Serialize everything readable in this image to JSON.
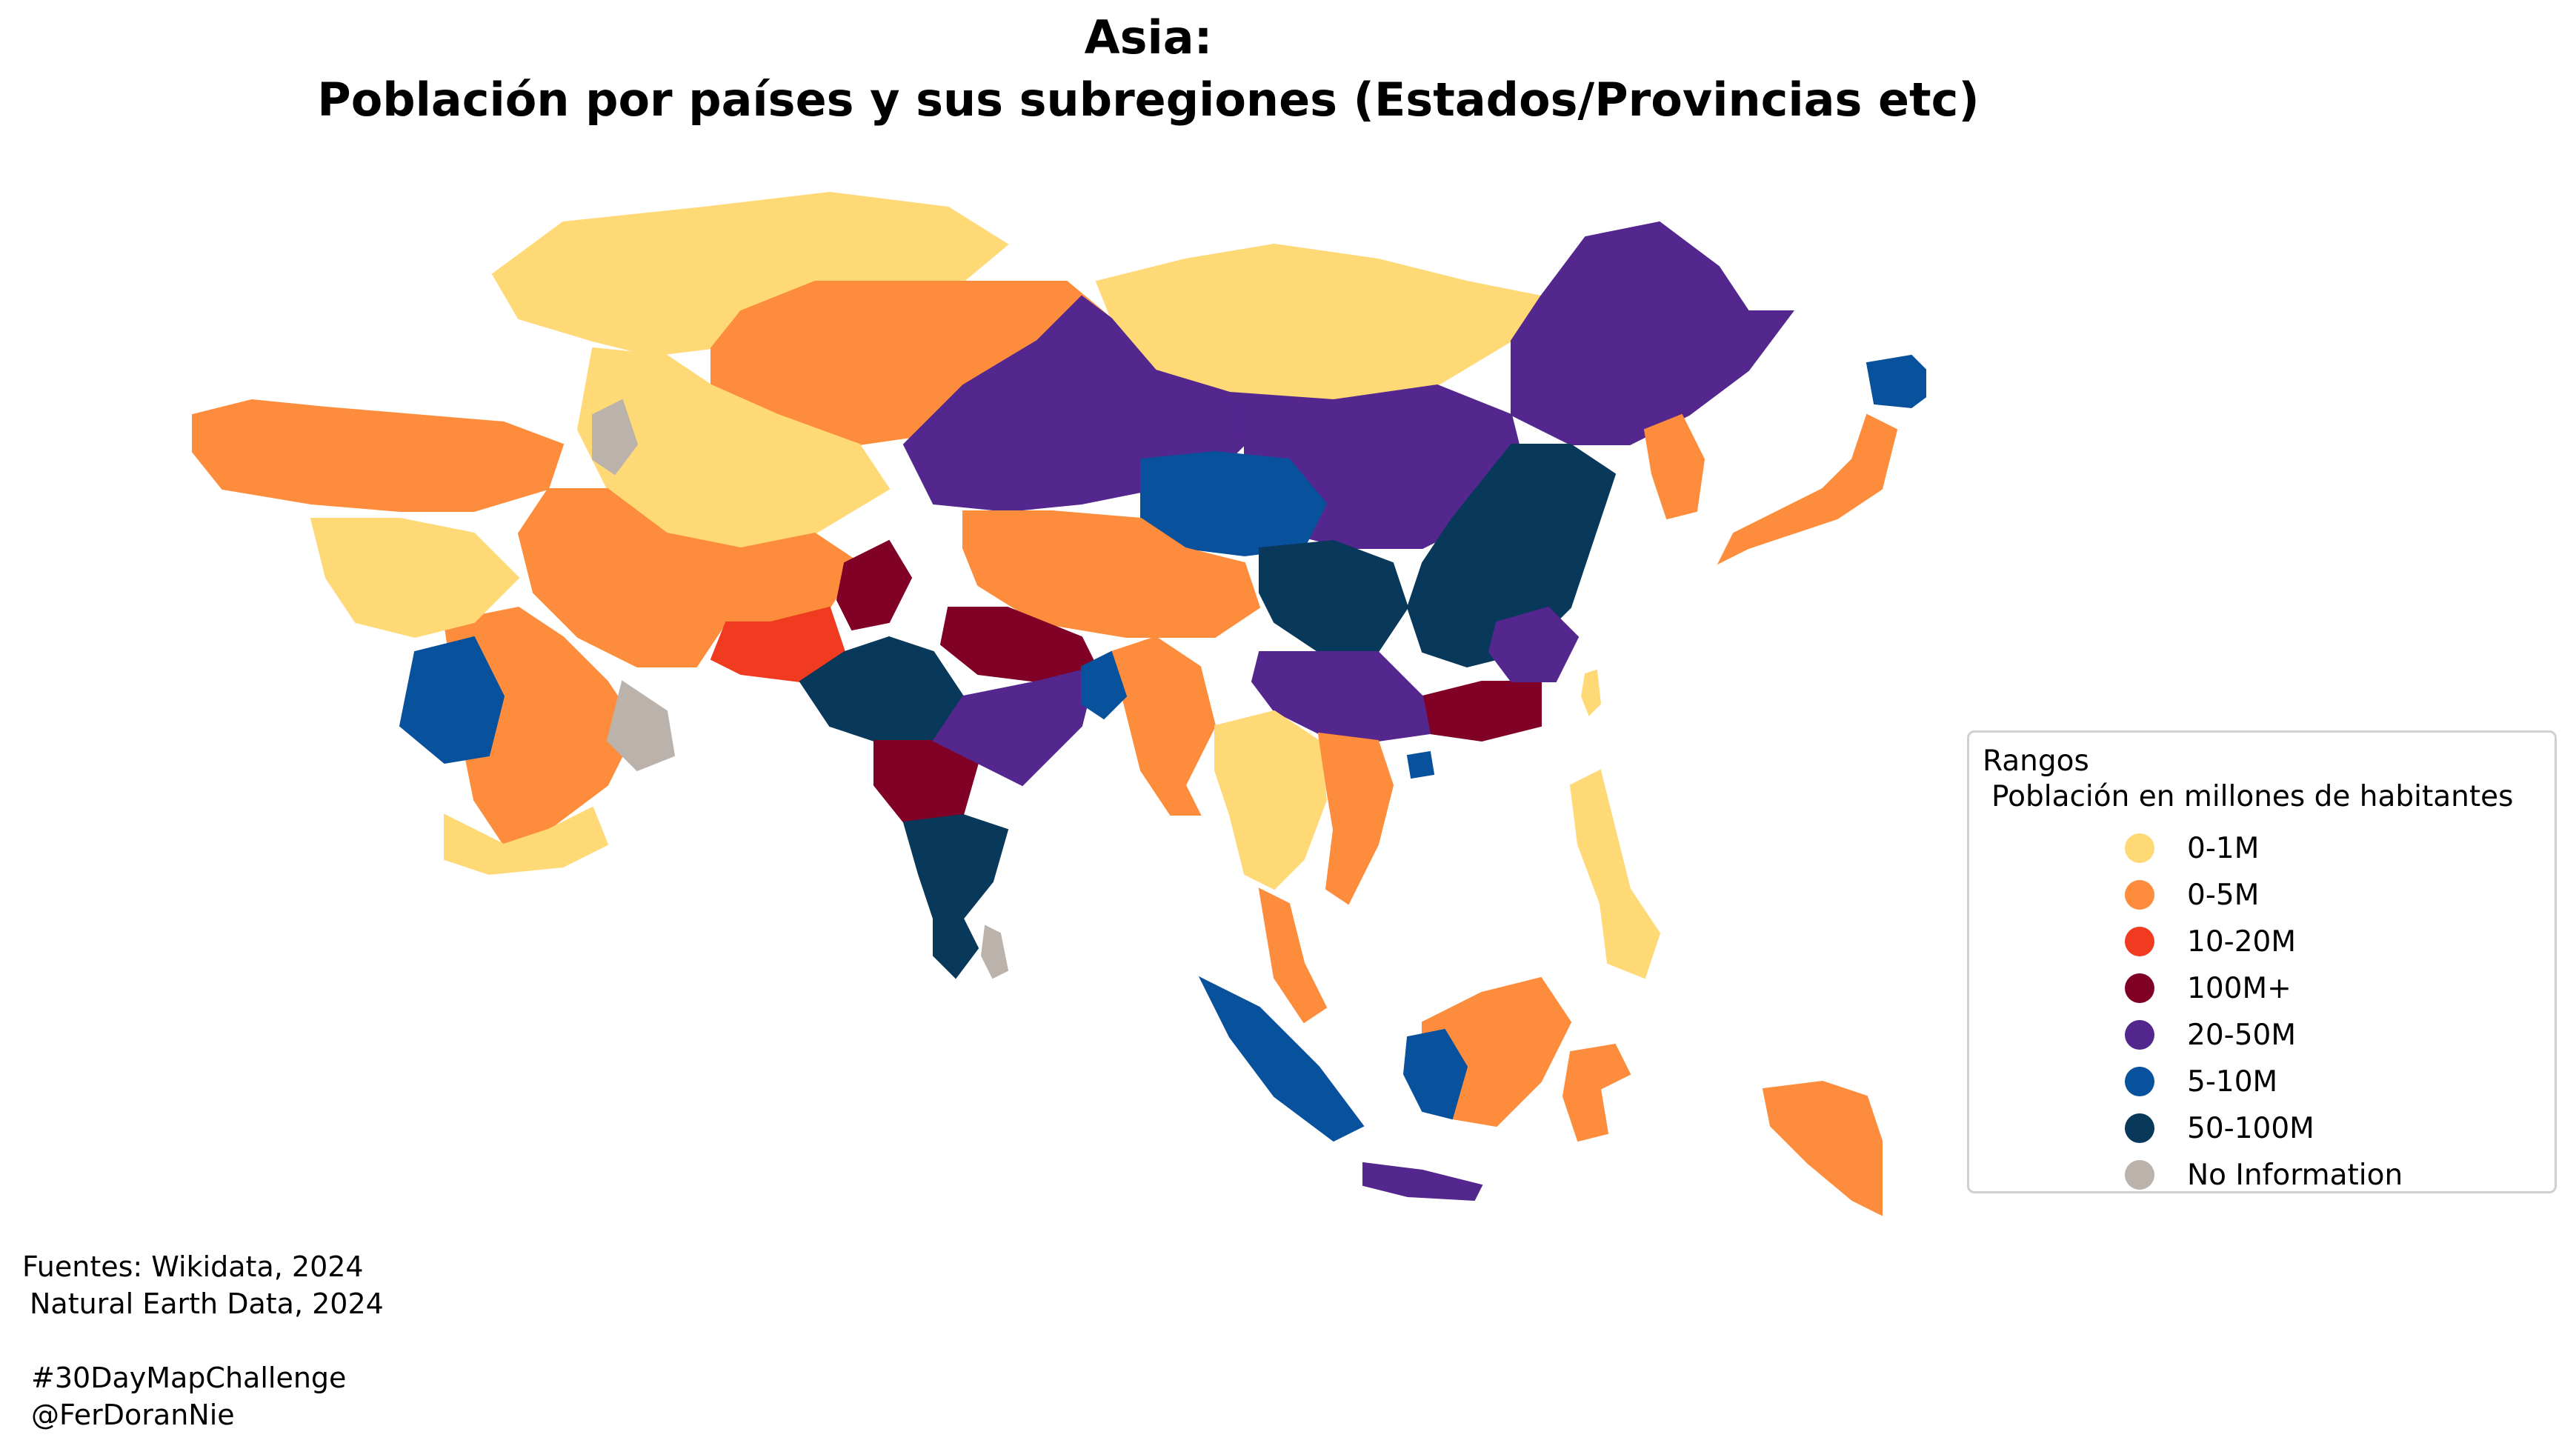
{
  "title_line1": "Asia:",
  "title_line2": "Población por países y sus subregiones (Estados/Provincias etc)",
  "legend": {
    "title": "Rangos",
    "subtitle": "Población en millones de habitantes",
    "items": [
      {
        "label": "0-1M",
        "color": "#fed976"
      },
      {
        "label": "0-5M",
        "color": "#fd8d3c"
      },
      {
        "label": "10-20M",
        "color": "#f03b20"
      },
      {
        "label": "100M+",
        "color": "#800026"
      },
      {
        "label": "20-50M",
        "color": "#54278f"
      },
      {
        "label": "5-10M",
        "color": "#08519c"
      },
      {
        "label": "50-100M",
        "color": "#08385a"
      },
      {
        "label": "No Information",
        "color": "#bcb2ac"
      }
    ]
  },
  "sources": {
    "line1": "Fuentes: Wikidata, 2024",
    "line2": "Natural Earth Data, 2024",
    "line3": "#30DayMapChallenge",
    "line4": "@FerDoranNie"
  },
  "regions": [
    {
      "name": "kazakhstan-north",
      "cat": 0
    },
    {
      "name": "kazakhstan-south",
      "cat": 1
    },
    {
      "name": "central-asia-south",
      "cat": 0
    },
    {
      "name": "mongolia",
      "cat": 0
    },
    {
      "name": "china-northeast",
      "cat": 4
    },
    {
      "name": "china-west",
      "cat": 4
    },
    {
      "name": "china-center",
      "cat": 4
    },
    {
      "name": "qinghai",
      "cat": 5
    },
    {
      "name": "tibet",
      "cat": 1
    },
    {
      "name": "sichuan",
      "cat": 6
    },
    {
      "name": "china-east",
      "cat": 6
    },
    {
      "name": "guangdong",
      "cat": 3
    },
    {
      "name": "fujian",
      "cat": 4
    },
    {
      "name": "guangxi-yunnan",
      "cat": 4
    },
    {
      "name": "turkey-caucasus",
      "cat": 1
    },
    {
      "name": "iran",
      "cat": 1
    },
    {
      "name": "afghanistan",
      "cat": 1
    },
    {
      "name": "pakistan",
      "cat": 2
    },
    {
      "name": "punjab-pk",
      "cat": 3
    },
    {
      "name": "rajasthan",
      "cat": 6
    },
    {
      "name": "uttar-pradesh",
      "cat": 3
    },
    {
      "name": "maharashtra",
      "cat": 3
    },
    {
      "name": "india-south",
      "cat": 6
    },
    {
      "name": "india-east",
      "cat": 4
    },
    {
      "name": "tamil-nadu",
      "cat": 6
    },
    {
      "name": "saudi-arabia",
      "cat": 1
    },
    {
      "name": "yemen",
      "cat": 0
    },
    {
      "name": "saudi-west",
      "cat": 5
    },
    {
      "name": "levant",
      "cat": 0
    },
    {
      "name": "oman",
      "cat": 7
    },
    {
      "name": "caspian",
      "cat": 7
    },
    {
      "name": "myanmar",
      "cat": 1
    },
    {
      "name": "bangladesh",
      "cat": 5
    },
    {
      "name": "thailand",
      "cat": 0
    },
    {
      "name": "vietnam",
      "cat": 1
    },
    {
      "name": "korea",
      "cat": 1
    },
    {
      "name": "japan",
      "cat": 1
    },
    {
      "name": "hokkaido",
      "cat": 5
    },
    {
      "name": "philippines",
      "cat": 0
    },
    {
      "name": "malaysia",
      "cat": 1
    },
    {
      "name": "sumatra",
      "cat": 5
    },
    {
      "name": "java",
      "cat": 4
    },
    {
      "name": "borneo",
      "cat": 1
    },
    {
      "name": "borneo-west",
      "cat": 5
    },
    {
      "name": "sulawesi",
      "cat": 1
    },
    {
      "name": "new-guinea",
      "cat": 1
    },
    {
      "name": "sri-lanka",
      "cat": 7
    },
    {
      "name": "taiwan",
      "cat": 0
    },
    {
      "name": "hainan",
      "cat": 5
    }
  ]
}
